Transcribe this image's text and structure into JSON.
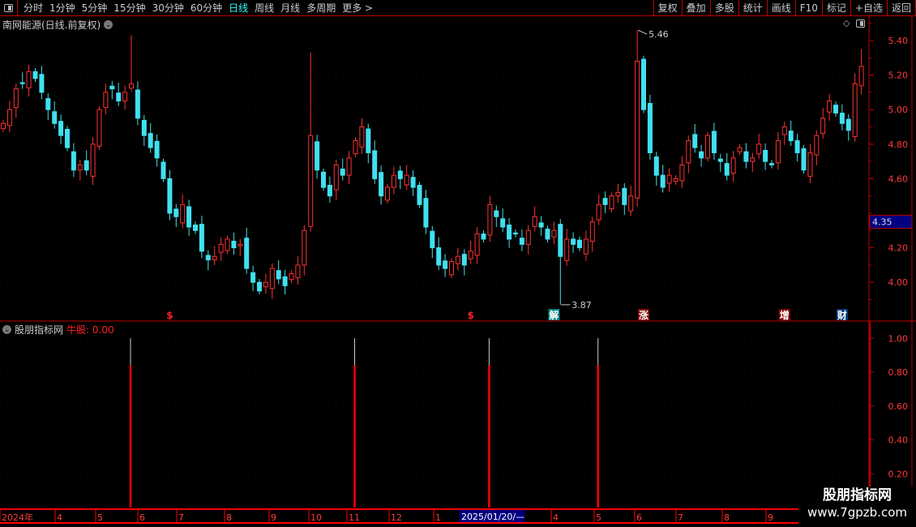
{
  "toolbar": {
    "periods": [
      "分时",
      "1分钟",
      "5分钟",
      "15分钟",
      "30分钟",
      "60分钟",
      "日线",
      "周线",
      "月线",
      "多周期",
      "更多 >"
    ],
    "active_period": "日线",
    "right_buttons": [
      "复权",
      "叠加",
      "多股",
      "统计",
      "画线",
      "F10",
      "标记",
      "+自选",
      "返回"
    ]
  },
  "stock": {
    "title": "南网能源(日线.前复权)"
  },
  "indicator": {
    "name": "股朋指标网",
    "value_label": "牛股: 0.00"
  },
  "colors": {
    "up": "#ff3232",
    "down": "#40e0f0",
    "axis": "#c00000",
    "text": "#ff3b3b",
    "highlight": "#000080"
  },
  "chart_data": [
    {
      "type": "candlestick",
      "title": "南网能源(日线.前复权)",
      "y_ticks": [
        "5.40",
        "5.20",
        "5.00",
        "4.80",
        "4.60",
        "4.20",
        "4.00"
      ],
      "ylim": [
        3.8,
        5.5
      ],
      "current_price": "4.35",
      "closes": [
        4.92,
        5.0,
        5.12,
        5.15,
        5.22,
        5.18,
        5.1,
        5.0,
        4.92,
        4.85,
        4.78,
        4.65,
        4.68,
        4.65,
        4.8,
        5.0,
        5.1,
        5.12,
        5.05,
        5.1,
        5.15,
        4.95,
        4.85,
        4.78,
        4.72,
        4.6,
        4.4,
        4.38,
        4.45,
        4.32,
        4.3,
        4.18,
        4.13,
        4.15,
        4.22,
        4.25,
        4.2,
        4.22,
        4.08,
        4.0,
        3.95,
        4.0,
        4.08,
        4.02,
        3.98,
        4.05,
        4.1,
        4.3,
        4.85,
        4.65,
        4.55,
        4.5,
        4.68,
        4.62,
        4.72,
        4.82,
        4.9,
        4.75,
        4.6,
        4.5,
        4.55,
        4.62,
        4.6,
        4.62,
        4.55,
        4.45,
        4.32,
        4.2,
        4.1,
        4.08,
        4.12,
        4.15,
        4.1,
        4.18,
        4.28,
        4.25,
        4.45,
        4.38,
        4.32,
        4.25,
        4.28,
        4.22,
        4.3,
        4.38,
        4.32,
        4.25,
        4.3,
        4.15,
        4.25,
        4.22,
        4.2,
        4.25,
        4.35,
        4.45,
        4.45,
        4.5,
        4.52,
        4.45,
        4.5,
        5.28,
        5.0,
        4.75,
        4.62,
        4.55,
        4.62,
        4.6,
        4.68,
        4.82,
        4.78,
        4.72,
        4.85,
        4.75,
        4.7,
        4.62,
        4.72,
        4.78,
        4.7,
        4.72,
        4.8,
        4.7,
        4.68,
        4.82,
        4.9,
        4.82,
        4.75,
        4.65,
        4.75,
        4.85,
        4.95,
        5.05,
        4.98,
        4.92,
        4.88,
        5.15,
        5.25
      ],
      "extremes": [
        {
          "index": 20,
          "high": 5.43
        },
        {
          "index": 48,
          "high": 5.33
        },
        {
          "index": 87,
          "low": 3.87,
          "label": "3.87"
        },
        {
          "index": 99,
          "high": 5.46,
          "label": "5.46"
        },
        {
          "index": 134,
          "high": 5.35
        }
      ],
      "signals": [
        {
          "index": 26,
          "label": "$",
          "color": "#ff2020"
        },
        {
          "index": 73,
          "label": "$",
          "color": "#ff2020"
        },
        {
          "index": 86,
          "label": "解",
          "color": "#008080"
        },
        {
          "index": 100,
          "label": "涨",
          "color": "#800000"
        },
        {
          "index": 122,
          "label": "增",
          "color": "#800000"
        },
        {
          "index": 131,
          "label": "财",
          "color": "#003a70"
        }
      ]
    },
    {
      "type": "bar",
      "title": "股朋指标网",
      "series_name": "牛股",
      "y_ticks": [
        "1.00",
        "0.80",
        "0.60",
        "0.40",
        "0.20"
      ],
      "ylim": [
        0,
        1.05
      ],
      "spikes": [
        {
          "index": 20,
          "value": 1.0
        },
        {
          "index": 55,
          "value": 1.0
        },
        {
          "index": 76,
          "value": 1.0
        },
        {
          "index": 93,
          "value": 1.0
        }
      ]
    }
  ],
  "time_axis": {
    "labels": [
      "2024年",
      "4",
      "5",
      "6",
      "7",
      "8",
      "9",
      "10",
      "11",
      "12",
      "1",
      "4",
      "5",
      "6",
      "7",
      "8",
      "9"
    ],
    "highlight": "2025/01/20/—"
  },
  "watermark": {
    "name": "股朋指标网",
    "url": "www.7gpzb.com"
  }
}
